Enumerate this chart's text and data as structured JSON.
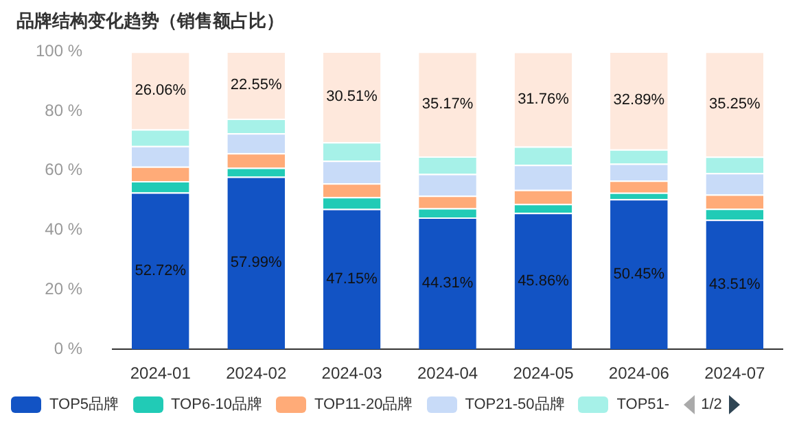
{
  "chart_data": {
    "type": "bar",
    "title": "品牌结构变化趋势（销售额占比）",
    "stacked": true,
    "legend": "bottom",
    "grid": false,
    "categories": [
      "2024-01",
      "2024-02",
      "2024-03",
      "2024-04",
      "2024-05",
      "2024-06",
      "2024-07"
    ],
    "ylim": [
      0,
      100
    ],
    "yticks": [
      {
        "value": 0,
        "label": "0 %"
      },
      {
        "value": 20,
        "label": "20 %"
      },
      {
        "value": 40,
        "label": "40 %"
      },
      {
        "value": 60,
        "label": "60 %"
      },
      {
        "value": 80,
        "label": "80 %"
      },
      {
        "value": 100,
        "label": "100 %"
      }
    ],
    "series": [
      {
        "name": "TOP5品牌",
        "color": "#1253c4",
        "values": [
          52.72,
          57.99,
          47.15,
          44.31,
          45.86,
          50.45,
          43.51
        ],
        "value_labels": [
          "52.72%",
          "57.99%",
          "47.15%",
          "44.31%",
          "45.86%",
          "50.45%",
          "43.51%"
        ]
      },
      {
        "name": "TOP6-10品牌",
        "color": "#21cbb6",
        "values": [
          3.8,
          3.0,
          4.0,
          3.1,
          3.0,
          2.2,
          3.7
        ]
      },
      {
        "name": "TOP11-20品牌",
        "color": "#ffab78",
        "values": [
          4.9,
          4.9,
          4.6,
          4.2,
          4.7,
          4.0,
          4.8
        ]
      },
      {
        "name": "TOP21-50品牌",
        "color": "#c8dbf8",
        "values": [
          6.9,
          6.7,
          7.6,
          7.3,
          8.4,
          5.7,
          7.2
        ]
      },
      {
        "name": "TOP51-",
        "color": "#a6f1e8",
        "values": [
          5.6,
          4.9,
          6.2,
          5.9,
          6.2,
          4.8,
          5.5
        ]
      },
      {
        "color": "#fee8dc",
        "values": [
          26.06,
          22.55,
          30.51,
          35.17,
          31.76,
          32.89,
          35.25
        ],
        "value_labels": [
          "26.06%",
          "22.55%",
          "30.51%",
          "35.17%",
          "31.76%",
          "32.89%",
          "35.25%"
        ]
      }
    ],
    "annotations": [
      "1/2"
    ]
  }
}
